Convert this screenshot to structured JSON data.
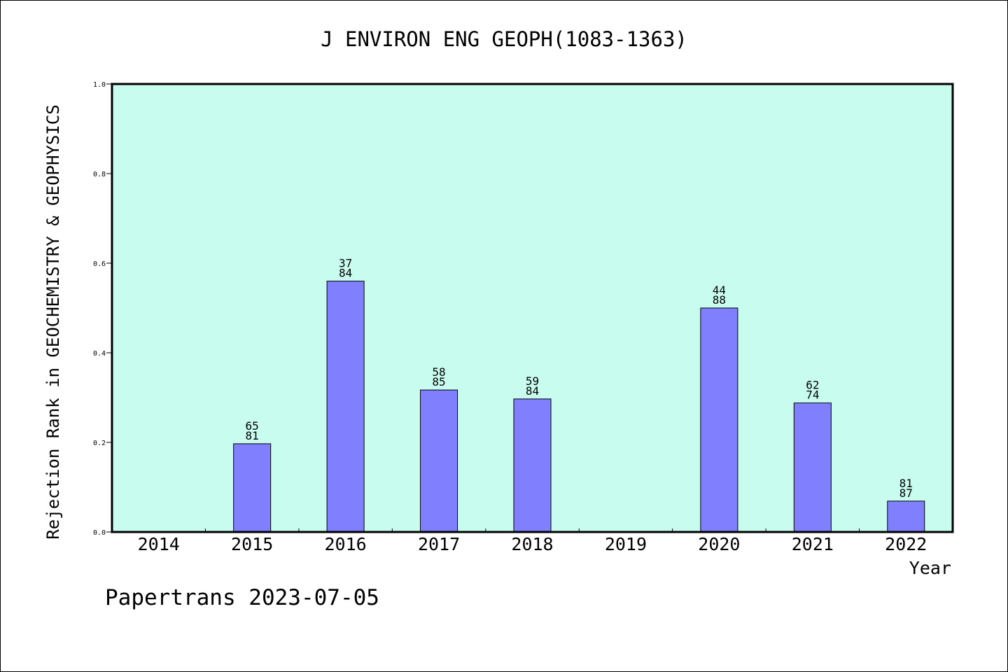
{
  "chart_data": {
    "type": "bar",
    "title": "J ENVIRON ENG GEOPH(1083-1363)",
    "xlabel": "Year",
    "ylabel": "Rejection Rank in GEOCHEMISTRY & GEOPHYSICS",
    "footer": "Papertrans 2023-07-05",
    "ylim": [
      0,
      1.0
    ],
    "yticks": [
      "0.0",
      "0.2",
      "0.4",
      "0.6",
      "0.8",
      "1.0"
    ],
    "categories": [
      "2014",
      "2015",
      "2016",
      "2017",
      "2018",
      "2019",
      "2020",
      "2021",
      "2022"
    ],
    "values": [
      null,
      0.197,
      0.56,
      0.317,
      0.297,
      null,
      0.5,
      0.288,
      0.069
    ],
    "labels_top": [
      "",
      "65",
      "37",
      "58",
      "59",
      "",
      "44",
      "62",
      "81"
    ],
    "labels_bottom": [
      "",
      "81",
      "84",
      "85",
      "84",
      "",
      "88",
      "74",
      "87"
    ],
    "colors": {
      "plot_background": "#c8fcee",
      "bar_fill": "#8080ff",
      "bar_stroke": "#000000"
    }
  }
}
